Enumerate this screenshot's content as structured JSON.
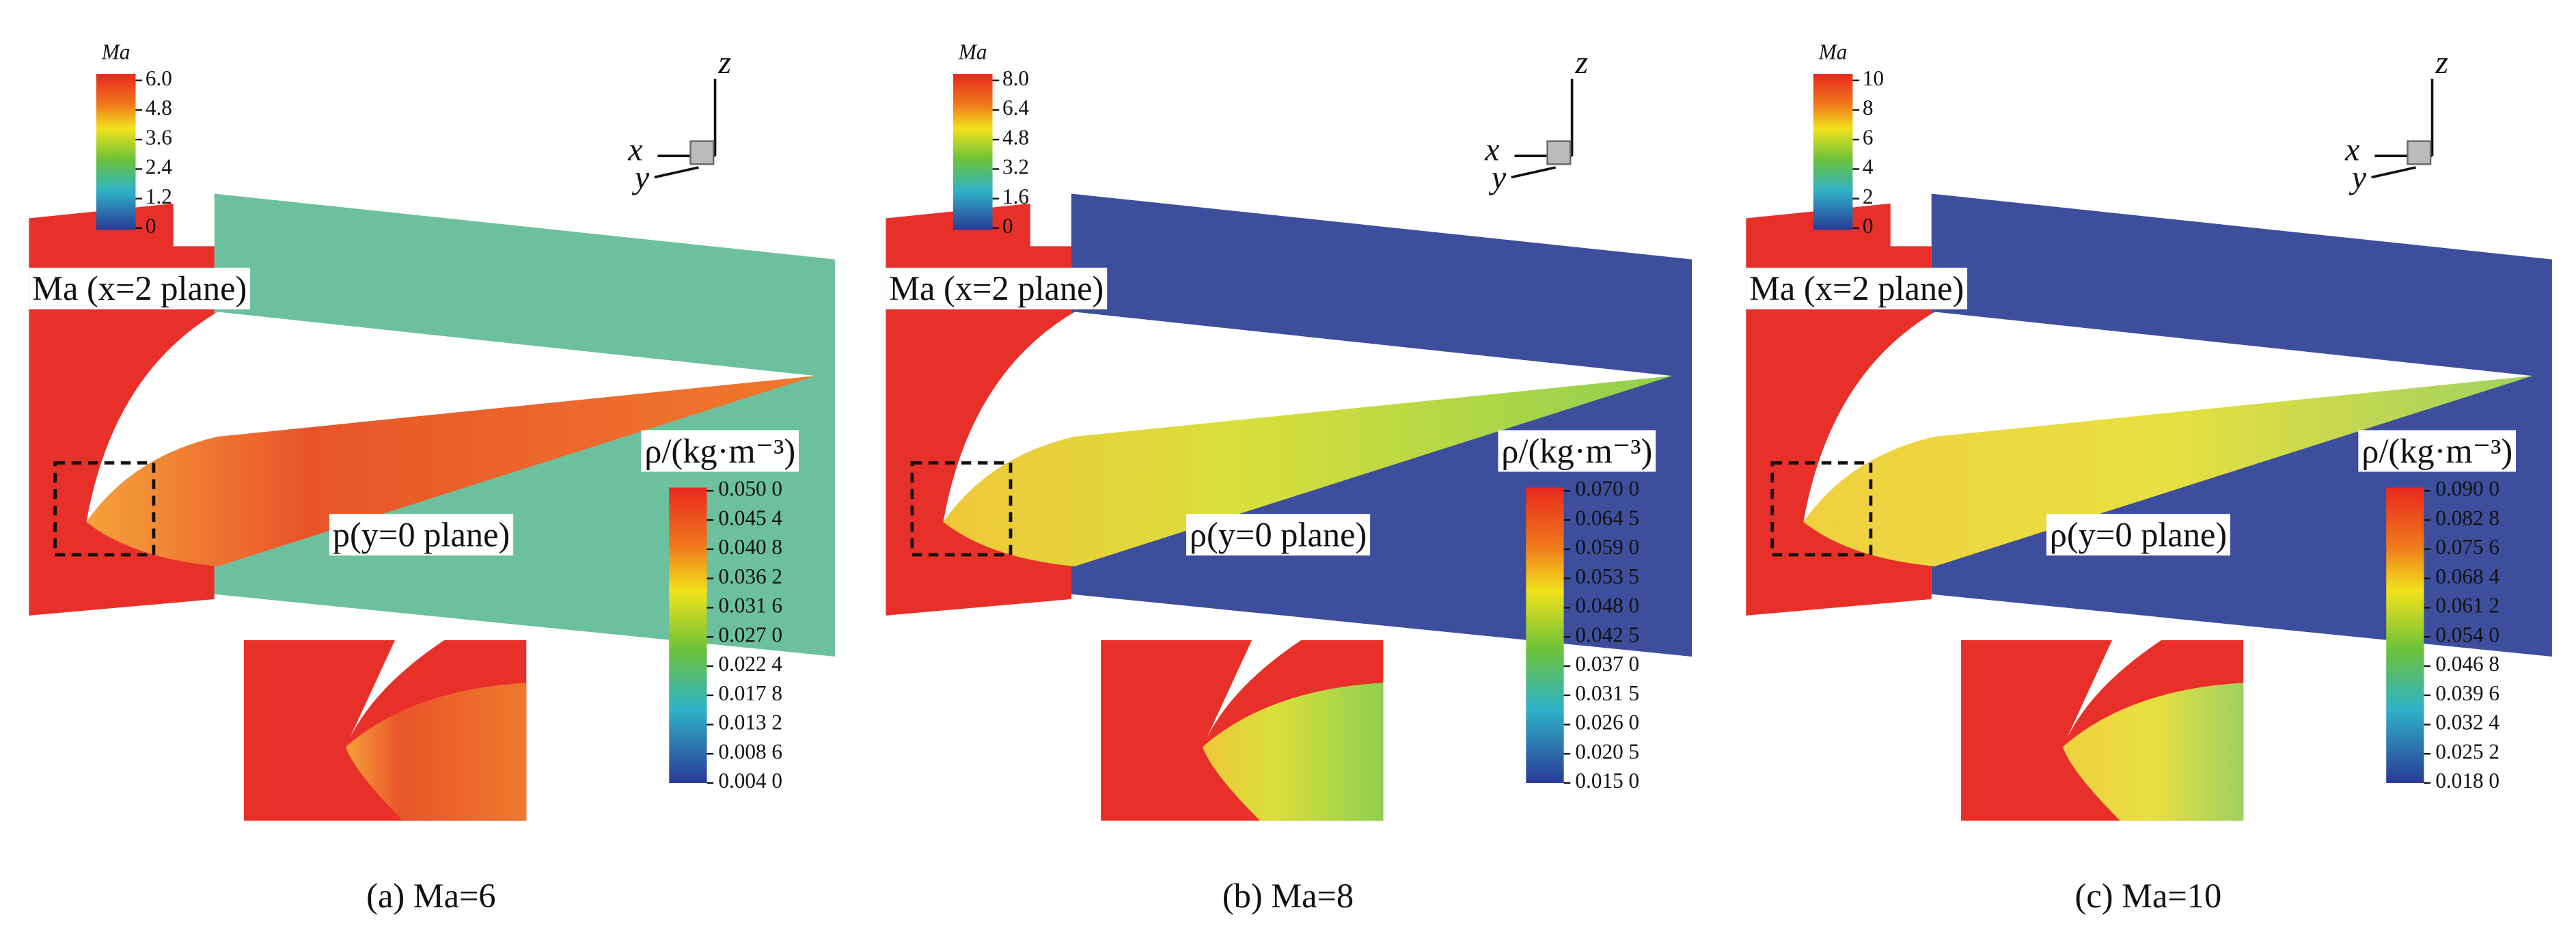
{
  "panels": [
    {
      "ma_legend": {
        "title": "Ma",
        "ticks": [
          "6.0",
          "4.8",
          "3.6",
          "2.4",
          "1.2",
          "0"
        ]
      },
      "axes": {
        "z": "z",
        "x": "x",
        "y": "y"
      },
      "plane_label": "Ma (x=2 plane)",
      "y0_label": "p(y=0 plane)",
      "rho_legend": {
        "title": "ρ/(kg·m⁻³)",
        "ticks": [
          "0.050 0",
          "0.045 4",
          "0.040 8",
          "0.036 2",
          "0.031 6",
          "0.027 0",
          "0.022 4",
          "0.017 8",
          "0.013 2",
          "0.008 6",
          "0.004 0"
        ]
      },
      "caption": "(a) Ma=6"
    },
    {
      "ma_legend": {
        "title": "Ma",
        "ticks": [
          "8.0",
          "6.4",
          "4.8",
          "3.2",
          "1.6",
          "0"
        ]
      },
      "axes": {
        "z": "z",
        "x": "x",
        "y": "y"
      },
      "plane_label": "Ma (x=2 plane)",
      "y0_label": "ρ(y=0 plane)",
      "rho_legend": {
        "title": "ρ/(kg·m⁻³)",
        "ticks": [
          "0.070 0",
          "0.064 5",
          "0.059 0",
          "0.053 5",
          "0.048 0",
          "0.042 5",
          "0.037 0",
          "0.031 5",
          "0.026 0",
          "0.020 5",
          "0.015 0"
        ]
      },
      "caption": "(b) Ma=8"
    },
    {
      "ma_legend": {
        "title": "Ma",
        "ticks": [
          "10",
          "8",
          "6",
          "4",
          "2",
          "0"
        ]
      },
      "axes": {
        "z": "z",
        "x": "x",
        "y": "y"
      },
      "plane_label": "Ma (x=2 plane)",
      "y0_label": "ρ(y=0 plane)",
      "rho_legend": {
        "title": "ρ/(kg·m⁻³)",
        "ticks": [
          "0.090 0",
          "0.082 8",
          "0.075 6",
          "0.068 4",
          "0.061 2",
          "0.054 0",
          "0.046 8",
          "0.039 6",
          "0.032 4",
          "0.025 2",
          "0.018 0"
        ]
      },
      "caption": "(c) Ma=10"
    }
  ]
}
